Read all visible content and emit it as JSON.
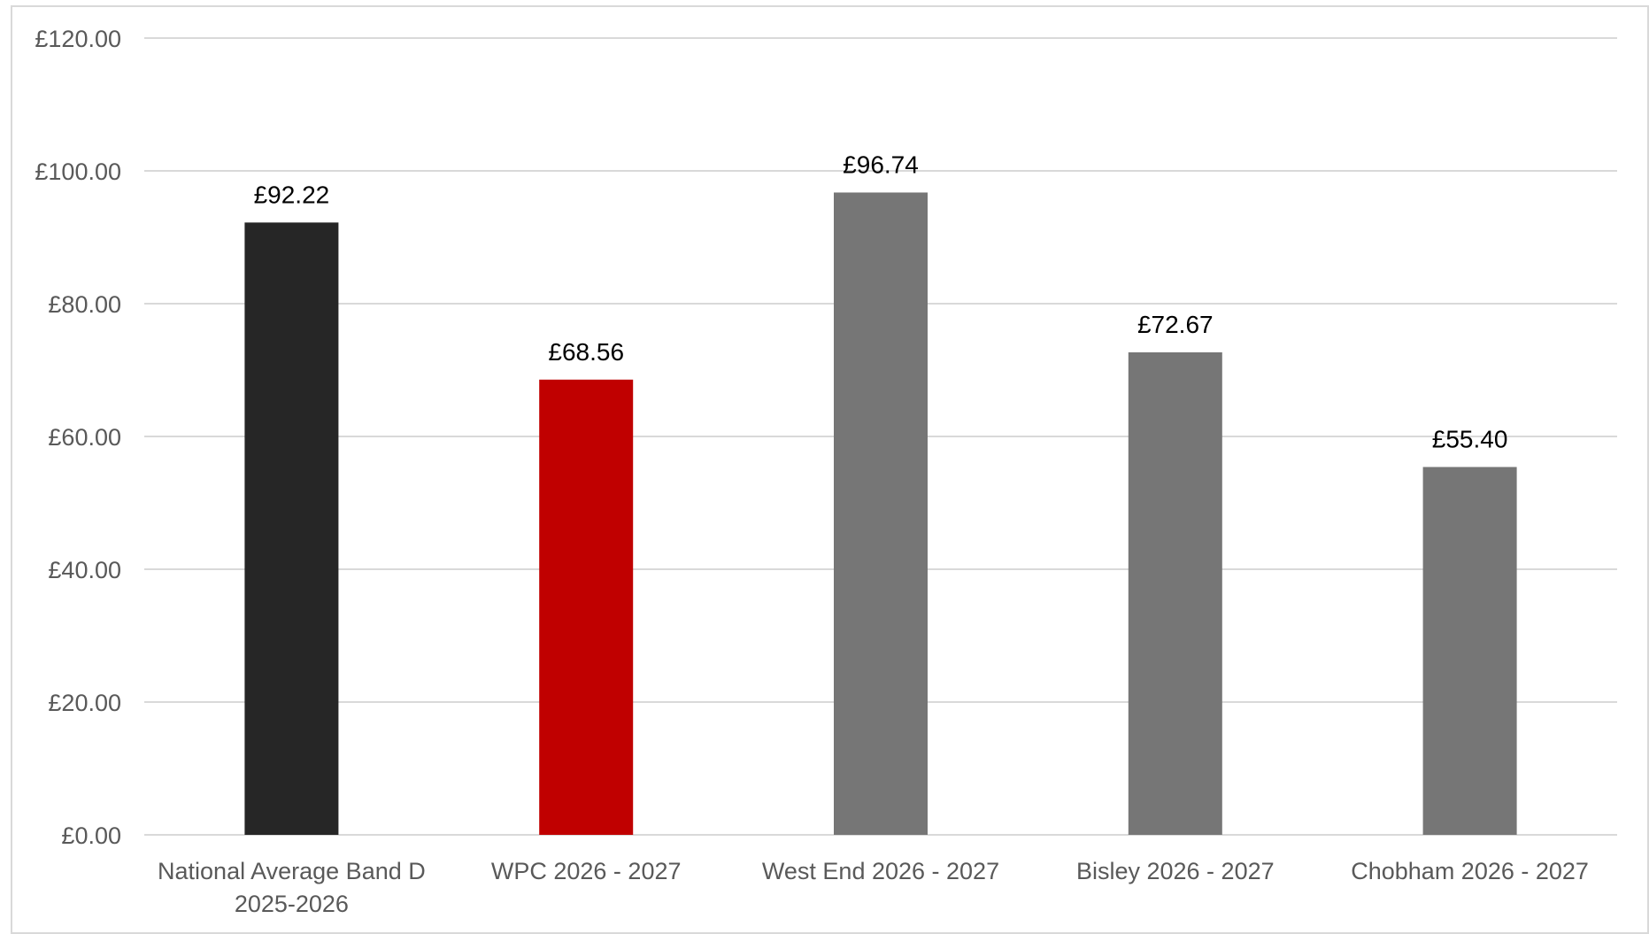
{
  "chart_data": {
    "type": "bar",
    "title": "",
    "xlabel": "",
    "ylabel": "",
    "ylim": [
      0,
      120
    ],
    "yticks": [
      0,
      20,
      40,
      60,
      80,
      100,
      120
    ],
    "ytick_labels": [
      "£0.00",
      "£20.00",
      "£40.00",
      "£60.00",
      "£80.00",
      "£100.00",
      "£120.00"
    ],
    "grid": true,
    "legend": "none",
    "categories": [
      [
        "National Average Band D",
        "2025-2026"
      ],
      [
        "WPC 2026 - 2027"
      ],
      [
        "West End 2026 - 2027"
      ],
      [
        "Bisley 2026 - 2027"
      ],
      [
        "Chobham 2026 - 2027"
      ]
    ],
    "values": [
      92.22,
      68.56,
      96.74,
      72.67,
      55.4
    ],
    "data_labels": [
      "£92.22",
      "£68.56",
      "£96.74",
      "£72.67",
      "£55.40"
    ],
    "bar_colors": [
      "#262626",
      "#c00000",
      "#767676",
      "#767676",
      "#767676"
    ]
  }
}
